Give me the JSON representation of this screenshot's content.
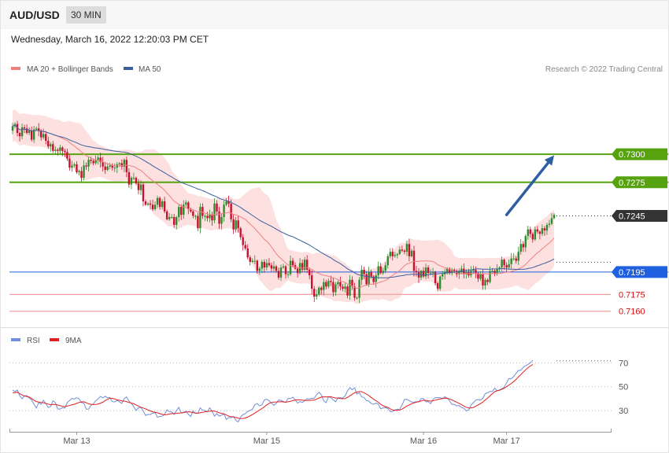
{
  "header": {
    "symbol": "AUD/USD",
    "timeframe": "30 MIN"
  },
  "datetime": "Wednesday, March 16, 2022 12:20:03 PM CET",
  "colors": {
    "up": "#2e8b2e",
    "down": "#c8102e",
    "bb_fill": "#fde0e0",
    "ma20": "#f08080",
    "ma50": "#3a5fa0",
    "green_level": "#57a30f",
    "blue_level": "#1e60e0",
    "red_level": "#f4a0a0",
    "current": "#333333",
    "arrow": "#2e5fa3",
    "rsi": "#6f8fd8",
    "rsi_ma": "#e02020"
  },
  "chart_data": [
    {
      "type": "candlestick",
      "legend": [
        {
          "name": "MA 20 + Bollinger Bands",
          "color": "#f08080"
        },
        {
          "name": "MA 50",
          "color": "#3a5fa0"
        }
      ],
      "legend_position": "top-left",
      "credit": "Research © 2022 Trading Central",
      "ylim": [
        0.71535,
        0.7366
      ],
      "x_ticks": [
        {
          "label": "Mar 13",
          "index": 27
        },
        {
          "label": "Mar 15",
          "index": 107
        },
        {
          "label": "Mar 16",
          "index": 173
        },
        {
          "label": "Mar 17",
          "index": 208
        }
      ],
      "levels": [
        {
          "value": 0.73,
          "label": "0.7300",
          "kind": "resistance",
          "color": "#57a30f"
        },
        {
          "value": 0.7275,
          "label": "0.7275",
          "kind": "resistance",
          "color": "#57a30f"
        },
        {
          "value": 0.7245,
          "label": "0.7245",
          "kind": "current",
          "color": "#333333"
        },
        {
          "value": 0.7195,
          "label": "0.7195",
          "kind": "pivot",
          "color": "#1e60e0"
        },
        {
          "value": 0.7175,
          "label": "0.7175",
          "kind": "support",
          "color": "#e02020"
        },
        {
          "value": 0.716,
          "label": "0.7160",
          "kind": "support",
          "color": "#e02020"
        }
      ],
      "arrow": {
        "from": [
          208,
          0.7246
        ],
        "to": [
          228,
          0.7299
        ]
      },
      "closes": [
        0.7325,
        0.7327,
        0.7319,
        0.7316,
        0.7324,
        0.7323,
        0.7319,
        0.7321,
        0.7313,
        0.7322,
        0.7323,
        0.7321,
        0.7315,
        0.7318,
        0.7312,
        0.7307,
        0.7309,
        0.7303,
        0.7304,
        0.7303,
        0.7306,
        0.7303,
        0.7302,
        0.7296,
        0.7288,
        0.729,
        0.7291,
        0.7284,
        0.7285,
        0.7279,
        0.729,
        0.7289,
        0.7295,
        0.7294,
        0.7292,
        0.7295,
        0.7297,
        0.7293,
        0.7289,
        0.7286,
        0.7289,
        0.729,
        0.7288,
        0.7288,
        0.7291,
        0.7292,
        0.7289,
        0.7295,
        0.7284,
        0.7273,
        0.7279,
        0.7279,
        0.7274,
        0.7268,
        0.7273,
        0.7258,
        0.7255,
        0.7256,
        0.7255,
        0.7251,
        0.7255,
        0.7261,
        0.7253,
        0.7258,
        0.7249,
        0.7242,
        0.7244,
        0.7244,
        0.7237,
        0.7244,
        0.7253,
        0.7246,
        0.7255,
        0.7257,
        0.7251,
        0.7249,
        0.7245,
        0.7245,
        0.7234,
        0.7253,
        0.7245,
        0.7245,
        0.7243,
        0.7246,
        0.7241,
        0.7256,
        0.7249,
        0.7238,
        0.7244,
        0.7255,
        0.7258,
        0.7256,
        0.7242,
        0.7233,
        0.7241,
        0.7234,
        0.7226,
        0.7219,
        0.7216,
        0.7208,
        0.7204,
        0.7205,
        0.7205,
        0.7196,
        0.7198,
        0.7204,
        0.7199,
        0.7203,
        0.7201,
        0.7198,
        0.72,
        0.7196,
        0.719,
        0.7199,
        0.72,
        0.7193,
        0.7193,
        0.7205,
        0.7201,
        0.7198,
        0.7194,
        0.7203,
        0.7197,
        0.7206,
        0.7197,
        0.7192,
        0.718,
        0.7173,
        0.7175,
        0.7181,
        0.7179,
        0.7186,
        0.7182,
        0.7187,
        0.7186,
        0.7177,
        0.7184,
        0.7186,
        0.7182,
        0.718,
        0.7182,
        0.7174,
        0.7188,
        0.7182,
        0.7172,
        0.7172,
        0.7188,
        0.7197,
        0.7193,
        0.7184,
        0.7195,
        0.7191,
        0.7186,
        0.7192,
        0.72,
        0.7194,
        0.7196,
        0.7201,
        0.7209,
        0.7213,
        0.7209,
        0.721,
        0.7211,
        0.7215,
        0.7214,
        0.7213,
        0.722,
        0.7209,
        0.7214,
        0.7196,
        0.7195,
        0.719,
        0.7196,
        0.7191,
        0.7199,
        0.7194,
        0.7194,
        0.7195,
        0.7185,
        0.718,
        0.7191,
        0.7193,
        0.7195,
        0.7198,
        0.7194,
        0.7197,
        0.7196,
        0.7193,
        0.7196,
        0.7198,
        0.7193,
        0.7195,
        0.7192,
        0.7196,
        0.7197,
        0.7194,
        0.7189,
        0.7193,
        0.7183,
        0.7188,
        0.7186,
        0.7196,
        0.7196,
        0.7194,
        0.7198,
        0.7199,
        0.7206,
        0.7201,
        0.7199,
        0.7202,
        0.7207,
        0.7207,
        0.7205,
        0.7213,
        0.722,
        0.7217,
        0.7227,
        0.7233,
        0.7229,
        0.7224,
        0.7233,
        0.7231,
        0.7229,
        0.7234,
        0.7232,
        0.7237,
        0.7238,
        0.7243,
        0.7246
      ]
    },
    {
      "type": "line",
      "legend": [
        {
          "name": "RSI",
          "color": "#6f8fd8"
        },
        {
          "name": "9MA",
          "color": "#e02020"
        }
      ],
      "legend_position": "top-left",
      "ylim": [
        17,
        82
      ],
      "y_ticks": [
        70,
        50,
        30
      ],
      "rsi": [
        47.3,
        45.9,
        47.3,
        42.4,
        39.9,
        42.4,
        42.6,
        40.6,
        39.0,
        35.3,
        32.2,
        36.6,
        35.3,
        38.7,
        36.0,
        32.6,
        33.5,
        38.3,
        36.8,
        31.4,
        31.4,
        32.5,
        32.2,
        36.8,
        38.5,
        40.3,
        39.8,
        40.8,
        39.9,
        36.8,
        36.4,
        31.3,
        31.4,
        34.4,
        35.7,
        38.3,
        39.8,
        41.9,
        40.8,
        42.0,
        40.8,
        40.9,
        37.6,
        37.3,
        38.6,
        37.4,
        36.1,
        39.9,
        41.6,
        37.8,
        36.1,
        33.5,
        30.1,
        32.4,
        32.7,
        29.8,
        26.0,
        26.9,
        26.7,
        28.0,
        28.3,
        24.5,
        25.2,
        25.4,
        26.9,
        30.8,
        29.1,
        28.9,
        26.9,
        30.1,
        32.8,
        28.2,
        28.6,
        29.6,
        26.9,
        25.1,
        29.8,
        27.8,
        27.9,
        32.4,
        30.3,
        30.2,
        29.0,
        32.4,
        29.4,
        25.4,
        27.6,
        25.5,
        26.3,
        27.2,
        22.7,
        24.3,
        24.1,
        25.2,
        22.0,
        20.6,
        24.6,
        26.8,
        27.5,
        29.4,
        30.2,
        31.3,
        35.0,
        36.0,
        34.0,
        34.7,
        39.0,
        39.5,
        38.4,
        36.3,
        34.5,
        36.0,
        38.9,
        38.6,
        37.7,
        36.8,
        40.1,
        40.1,
        41.3,
        39.0,
        36.4,
        37.6,
        36.9,
        38.5,
        40.0,
        39.7,
        40.4,
        40.4,
        43.3,
        45.3,
        43.2,
        38.3,
        36.6,
        41.6,
        41.0,
        39.0,
        37.4,
        40.7,
        40.8,
        40.6,
        42.3,
        46.6,
        49.2,
        47.5,
        49.1,
        44.0,
        44.9,
        41.5,
        41.0,
        38.4,
        38.0,
        36.0,
        35.3,
        36.3,
        35.4,
        31.5,
        32.3,
        32.6,
        31.8,
        29.3,
        29.3,
        30.6,
        31.2,
        31.3,
        34.8,
        39.4,
        39.5,
        38.5,
        37.3,
        37.1,
        37.5,
        37.2,
        40.1,
        40.2,
        37.5,
        37.6,
        35.9,
        39.4,
        40.9,
        40.9,
        40.9,
        40.1,
        41.6,
        40.6,
        38.2,
        35.3,
        35.1,
        34.1,
        34.3,
        32.7,
        32.0,
        29.8,
        30.6,
        34.5,
        36.7,
        38.8,
        39.3,
        38.7,
        40.4,
        44.3,
        44.9,
        46.1,
        46.1,
        48.7,
        46.6,
        47.4,
        48.3,
        49.6,
        53.3,
        56.9,
        56.6,
        58.6,
        61.1,
        63.7,
        63.6,
        66.3,
        67.4,
        68.7,
        69.9,
        72.0
      ],
      "rsi_ma": [
        45.0,
        45.1,
        45.4,
        44.2,
        43.1,
        42.3,
        41.8,
        41.5,
        40.2,
        38.7,
        37.6,
        37.2,
        36.9,
        36.6,
        36.2,
        35.5,
        35.0,
        35.3,
        35.2,
        34.7,
        34.2,
        33.7,
        33.4,
        33.9,
        34.3,
        35.0,
        35.4,
        36.1,
        36.9,
        37.3,
        37.5,
        36.6,
        35.8,
        35.3,
        35.1,
        35.2,
        35.5,
        36.3,
        37.1,
        38.5,
        39.5,
        40.5,
        40.3,
        39.8,
        39.0,
        38.7,
        38.2,
        38.0,
        37.6,
        36.8,
        36.4,
        35.8,
        34.8,
        33.9,
        32.9,
        32.2,
        31.5,
        30.6,
        29.8,
        29.1,
        28.7,
        28.2,
        27.5,
        26.9,
        26.5,
        26.8,
        27.2,
        27.6,
        27.6,
        27.8,
        28.0,
        28.1,
        28.4,
        28.8,
        29.1,
        28.9,
        28.3,
        28.1,
        27.9,
        28.3,
        28.6,
        29.1,
        29.3,
        29.6,
        29.8,
        29.7,
        29.1,
        28.3,
        27.8,
        27.4,
        26.4,
        25.5,
        25.0,
        24.8,
        24.3,
        23.8,
        23.4,
        23.5,
        23.9,
        24.6,
        25.7,
        26.8,
        28.0,
        29.3,
        30.6,
        31.8,
        33.3,
        34.8,
        36.1,
        36.8,
        37.2,
        37.3,
        37.4,
        37.5,
        37.3,
        37.1,
        37.4,
        37.8,
        38.4,
        38.8,
        39.1,
        39.0,
        38.8,
        38.6,
        38.6,
        38.6,
        38.7,
        38.8,
        39.6,
        40.6,
        41.3,
        41.6,
        41.5,
        41.6,
        41.6,
        41.1,
        40.6,
        40.6,
        40.2,
        40.0,
        40.2,
        41.1,
        42.4,
        43.7,
        45.0,
        45.5,
        46.0,
        45.8,
        45.0,
        43.9,
        42.6,
        41.1,
        39.6,
        38.3,
        37.0,
        35.3,
        34.1,
        33.4,
        32.7,
        31.6,
        30.6,
        30.3,
        30.3,
        30.6,
        31.3,
        32.6,
        33.9,
        34.8,
        35.7,
        36.5,
        37.1,
        37.6,
        38.1,
        38.7,
        38.6,
        38.3,
        38.0,
        38.3,
        38.8,
        39.3,
        39.7,
        40.1,
        40.5,
        40.4,
        39.8,
        38.9,
        38.1,
        37.1,
        36.1,
        35.1,
        33.9,
        32.9,
        32.2,
        32.2,
        32.7,
        33.7,
        34.8,
        35.9,
        37.2,
        38.9,
        40.6,
        42.3,
        44.2,
        45.9,
        46.6,
        47.0,
        47.8,
        48.7,
        50.0,
        51.4,
        52.8,
        54.3,
        56.1,
        58.3,
        60.2,
        62.2,
        64.1,
        65.9,
        67.2,
        68.6
      ]
    }
  ]
}
